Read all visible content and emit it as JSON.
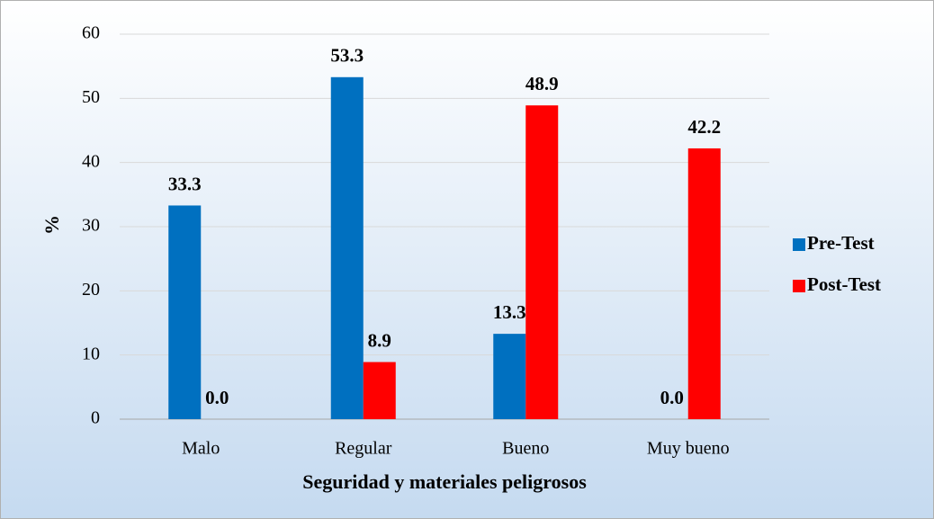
{
  "chart_data": {
    "type": "bar",
    "xlabel": "Seguridad y materiales peligrosos",
    "ylabel": "%",
    "categories": [
      "Malo",
      "Regular",
      "Bueno",
      "Muy bueno"
    ],
    "series": [
      {
        "name": "Pre-Test",
        "color": "#0070c0",
        "values": [
          33.3,
          53.3,
          13.3,
          0.0
        ],
        "value_labels": [
          "33.3",
          "53.3",
          "13.3",
          "0.0"
        ]
      },
      {
        "name": "Post-Test",
        "color": "#ff0000",
        "values": [
          0.0,
          8.9,
          48.9,
          42.2
        ],
        "value_labels": [
          "0.0",
          "8.9",
          "48.9",
          "42.2"
        ]
      }
    ],
    "ylim": [
      0,
      60
    ],
    "yticks": [
      0,
      10,
      20,
      30,
      40,
      50,
      60
    ],
    "grid": true,
    "legend": "right"
  }
}
